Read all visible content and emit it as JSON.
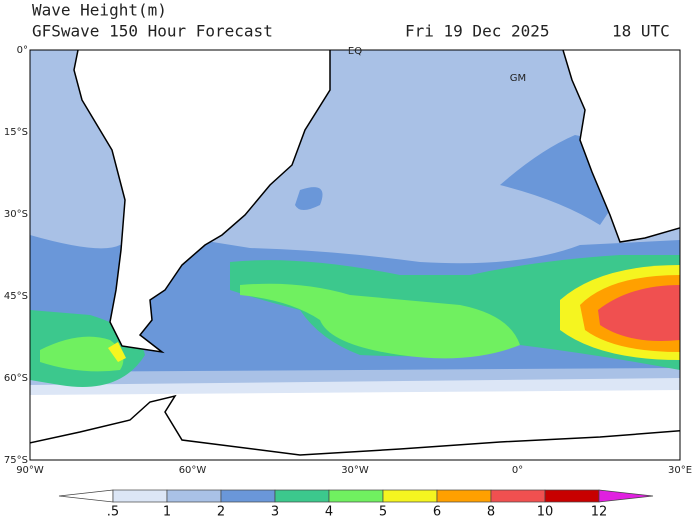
{
  "header": {
    "title": "Wave Height(m)",
    "subtitle": "GFSwave 150 Hour Forecast",
    "date": "Fri 19 Dec 2025",
    "time": "18 UTC"
  },
  "map": {
    "lat_labels": [
      "0°",
      "15°S",
      "30°S",
      "45°S",
      "60°S",
      "75°S"
    ],
    "lon_labels": [
      "90°W",
      "60°W",
      "30°W",
      "0°",
      "30°E"
    ],
    "place_labels": [
      "EQ",
      "GM"
    ]
  },
  "colorbar": {
    "labels": [
      ".5",
      "1",
      "2",
      "3",
      "4",
      "5",
      "6",
      "8",
      "10",
      "12"
    ],
    "colors": [
      "#ffffff",
      "#dce6f6",
      "#a9c1e6",
      "#6a97d9",
      "#3cc88d",
      "#70f060",
      "#f5f520",
      "#ffa000",
      "#f05050",
      "#c80000",
      "#e020e0"
    ]
  }
}
